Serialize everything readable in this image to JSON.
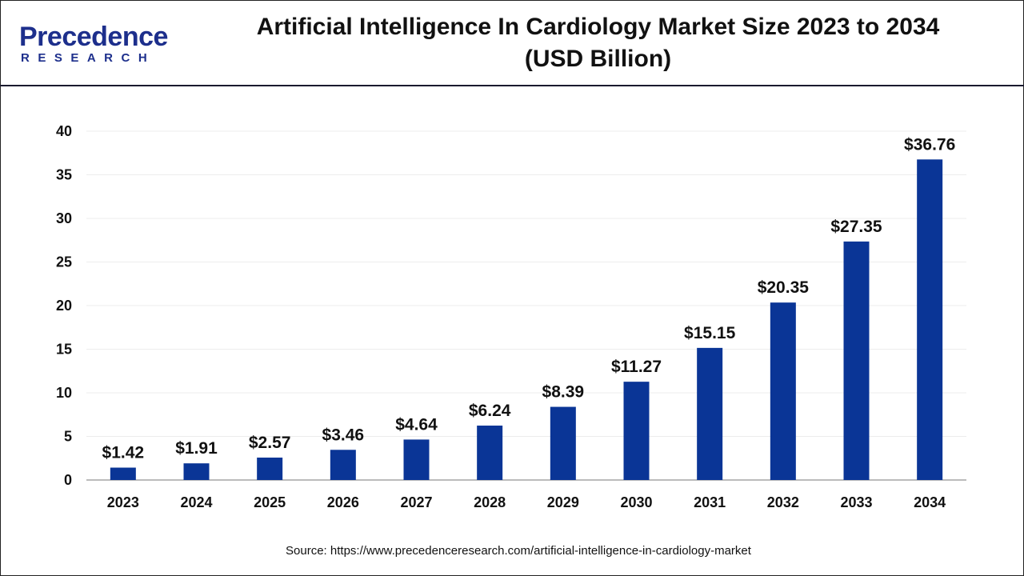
{
  "header": {
    "logo_text": "Precedence",
    "logo_sub": "RESEARCH",
    "title_line1": "Artificial Intelligence In Cardiology Market Size 2023 to 2034",
    "title_line2": "(USD Billion)"
  },
  "chart_data": {
    "type": "bar",
    "title": "Artificial Intelligence In Cardiology Market Size 2023 to 2034 (USD Billion)",
    "categories": [
      "2023",
      "2024",
      "2025",
      "2026",
      "2027",
      "2028",
      "2029",
      "2030",
      "2031",
      "2032",
      "2033",
      "2034"
    ],
    "values": [
      1.42,
      1.91,
      2.57,
      3.46,
      4.64,
      6.24,
      8.39,
      11.27,
      15.15,
      20.35,
      27.35,
      36.76
    ],
    "data_labels": [
      "$1.42",
      "$1.91",
      "$2.57",
      "$3.46",
      "$4.64",
      "$6.24",
      "$8.39",
      "$11.27",
      "$15.15",
      "$20.35",
      "$27.35",
      "$36.76"
    ],
    "yticks": [
      0,
      5,
      10,
      15,
      20,
      25,
      30,
      35,
      40
    ],
    "ylim": [
      0,
      40
    ],
    "xlabel": "",
    "ylabel": "",
    "grid": true,
    "bar_color": "#0a3596"
  },
  "footer": {
    "source": "Source: https://www.precedenceresearch.com/artificial-intelligence-in-cardiology-market"
  }
}
